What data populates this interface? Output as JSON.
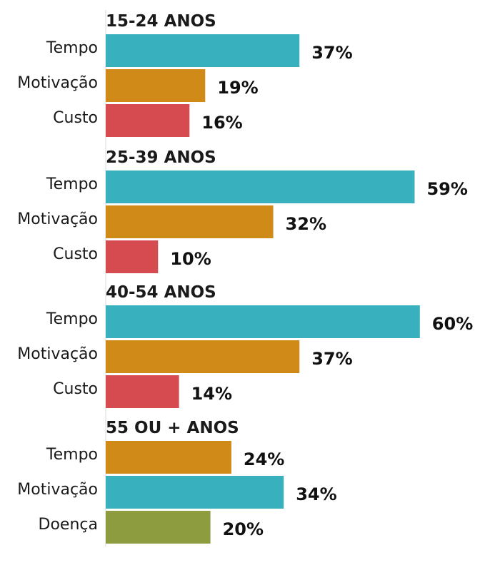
{
  "chart_data": {
    "type": "bar",
    "orientation": "horizontal",
    "value_format": "percent",
    "xlim": [
      0,
      60
    ],
    "colors": {
      "Tempo": "#38b0bd",
      "Motivação": "#d08a17",
      "Custo": "#d54b4f",
      "Doença": "#8e9c40"
    },
    "groups": [
      {
        "title": "15-24 ANOS",
        "bars": [
          {
            "label": "Tempo",
            "value": 37,
            "value_label": "37%"
          },
          {
            "label": "Motivação",
            "value": 19,
            "value_label": "19%"
          },
          {
            "label": "Custo",
            "value": 16,
            "value_label": "16%"
          }
        ]
      },
      {
        "title": "25-39 ANOS",
        "bars": [
          {
            "label": "Tempo",
            "value": 59,
            "value_label": "59%"
          },
          {
            "label": "Motivação",
            "value": 32,
            "value_label": "32%"
          },
          {
            "label": "Custo",
            "value": 10,
            "value_label": "10%"
          }
        ]
      },
      {
        "title": "40-54 ANOS",
        "bars": [
          {
            "label": "Tempo",
            "value": 60,
            "value_label": "60%"
          },
          {
            "label": "Motivação",
            "value": 37,
            "value_label": "37%"
          },
          {
            "label": "Custo",
            "value": 14,
            "value_label": "14%"
          }
        ]
      },
      {
        "title": "55 OU + ANOS",
        "bars": [
          {
            "label": "Tempo",
            "value": 24,
            "value_label": "24%",
            "color": "#d08a17"
          },
          {
            "label": "Motivação",
            "value": 34,
            "value_label": "34%",
            "color": "#38b0bd"
          },
          {
            "label": "Doença",
            "value": 20,
            "value_label": "20%"
          }
        ]
      }
    ]
  }
}
